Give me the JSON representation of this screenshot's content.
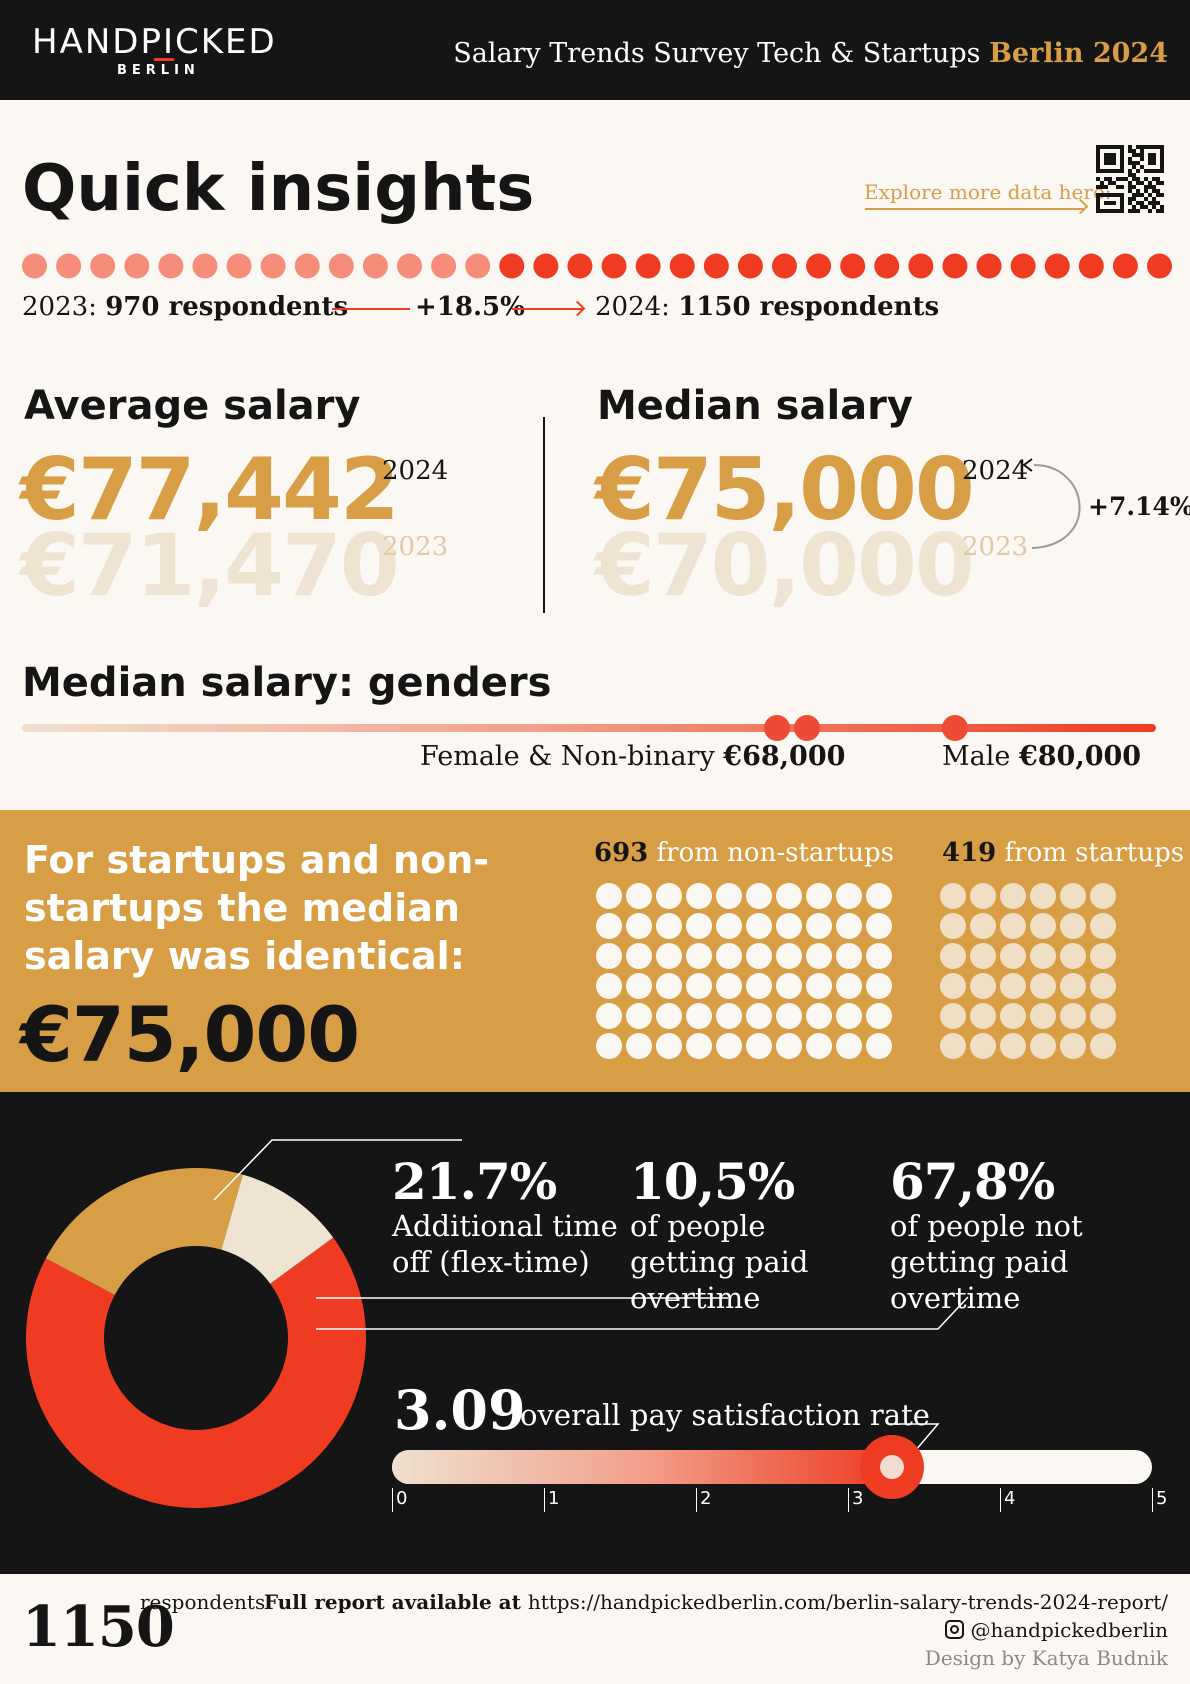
{
  "header": {
    "logo_text": "HANDPICKED",
    "logo_sub": "BERLIN",
    "title_plain": "Salary Trends Survey Tech & Startups ",
    "title_accent": "Berlin 2024"
  },
  "quick_insights": {
    "title": "Quick insights",
    "explore_label": "Explore more data here:",
    "respondents_2023_prefix": "2023: ",
    "respondents_2023_value": "970 respondents",
    "growth": "+18.5%",
    "respondents_2024_prefix": "2024: ",
    "respondents_2024_value": "1150 respondents"
  },
  "salaries": {
    "average_heading": "Average salary",
    "average_2024": "€77,442",
    "average_2023": "€71,470",
    "median_heading": "Median salary",
    "median_2024": "€75,000",
    "median_2023": "€70,000",
    "year_2024": "2024",
    "year_2023": "2023",
    "median_change": "+7.14%"
  },
  "genders": {
    "heading": "Median salary: genders",
    "female_label": "Female & Non-binary ",
    "female_value": "€68,000",
    "male_label": "Male ",
    "male_value": "€80,000"
  },
  "startups": {
    "text": "For startups and non-startups the median salary was identical:",
    "value": "€75,000",
    "non_startups_count": "693",
    "non_startups_label": " from non-startups",
    "startups_count": "419",
    "startups_label": " from startups"
  },
  "benefits": {
    "stat1_value": "21.7%",
    "stat1_text": "Additional time off (flex-time)",
    "stat2_value": "10,5%",
    "stat2_text": "of people getting paid overtime",
    "stat3_value": "67,8%",
    "stat3_text": "of people not getting paid overtime"
  },
  "satisfaction": {
    "value": "3.09",
    "label": "overall pay satisfaction rate",
    "ticks": [
      "0",
      "1",
      "2",
      "3",
      "4",
      "5"
    ]
  },
  "footer": {
    "respondents_count": "1150",
    "respondents_label": "respondents",
    "report_label": "Full report available at ",
    "report_url": "https://handpickedberlin.com/berlin-salary-trends-2024-report/",
    "instagram": "@handpickedberlin",
    "design_credit": "Design by Katya Budnik"
  },
  "colors": {
    "accent_gold": "#d89e45",
    "accent_red": "#ee3b22",
    "light_red": "#f68c7a",
    "cream": "#efe3d2",
    "dark": "#161515"
  },
  "chart_data": [
    {
      "type": "table",
      "title": "Quick insights",
      "categories": [
        "2023",
        "2024"
      ],
      "values": [
        970,
        1150
      ],
      "change": "+18.5%"
    },
    {
      "type": "table",
      "series": [
        {
          "name": "Average salary",
          "values": [
            71470,
            77442
          ]
        },
        {
          "name": "Median salary",
          "values": [
            70000,
            75000
          ]
        }
      ],
      "categories": [
        "2023",
        "2024"
      ]
    },
    {
      "type": "scatter",
      "title": "Median salary: genders",
      "categories": [
        "Female & Non-binary",
        "Male"
      ],
      "values": [
        68000,
        80000
      ]
    },
    {
      "type": "bar",
      "categories": [
        "non-startups",
        "startups"
      ],
      "values": [
        693,
        419
      ],
      "median_salary": 75000
    },
    {
      "type": "pie",
      "categories": [
        "Additional time off (flex-time)",
        "of people getting paid overtime",
        "of people not getting paid overtime"
      ],
      "values": [
        21.7,
        10.5,
        67.8
      ]
    },
    {
      "type": "bar",
      "title": "overall pay satisfaction rate",
      "value": 3.09,
      "xlim": [
        0,
        5
      ]
    }
  ]
}
